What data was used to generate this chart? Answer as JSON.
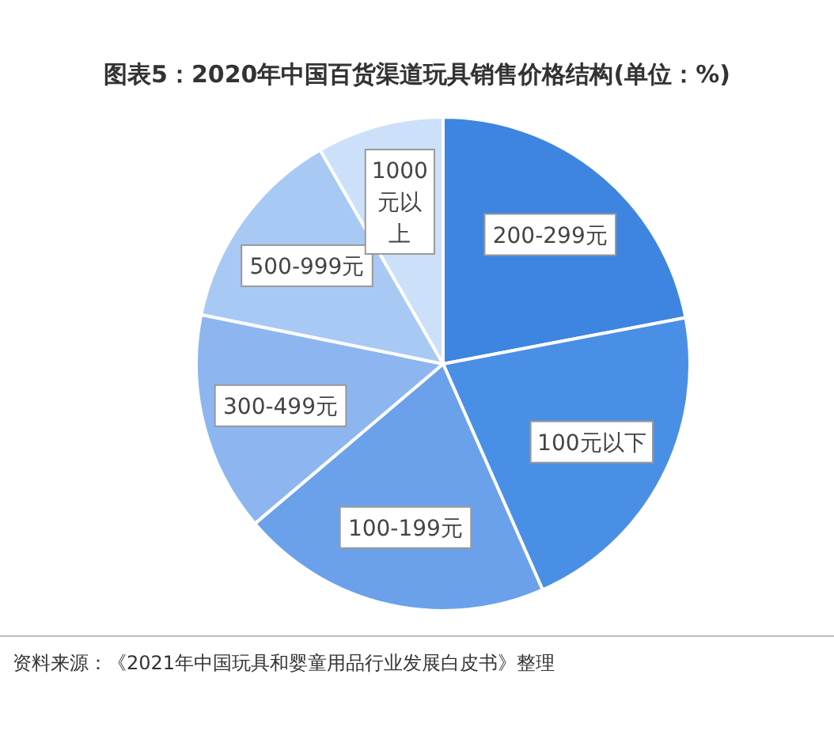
{
  "chart_data": {
    "type": "pie",
    "title": "图表5：2020年中国百货渠道玩具销售价格结构(单位：%)",
    "categories": [
      "200-299元",
      "100元以下",
      "100-199元",
      "300-499元",
      "500-999元",
      "1000元以上"
    ],
    "values": [
      22,
      21.4,
      20.4,
      14.4,
      13.5,
      8.3
    ],
    "colors": [
      "#3d85e0",
      "#4a8fe6",
      "#6aa1ea",
      "#8db6f0",
      "#a9c9f5",
      "#cde0fa"
    ],
    "annotations": [
      "资料来源：《2021年中国玩具和婴童用品行业发展白皮书》整理"
    ]
  }
}
